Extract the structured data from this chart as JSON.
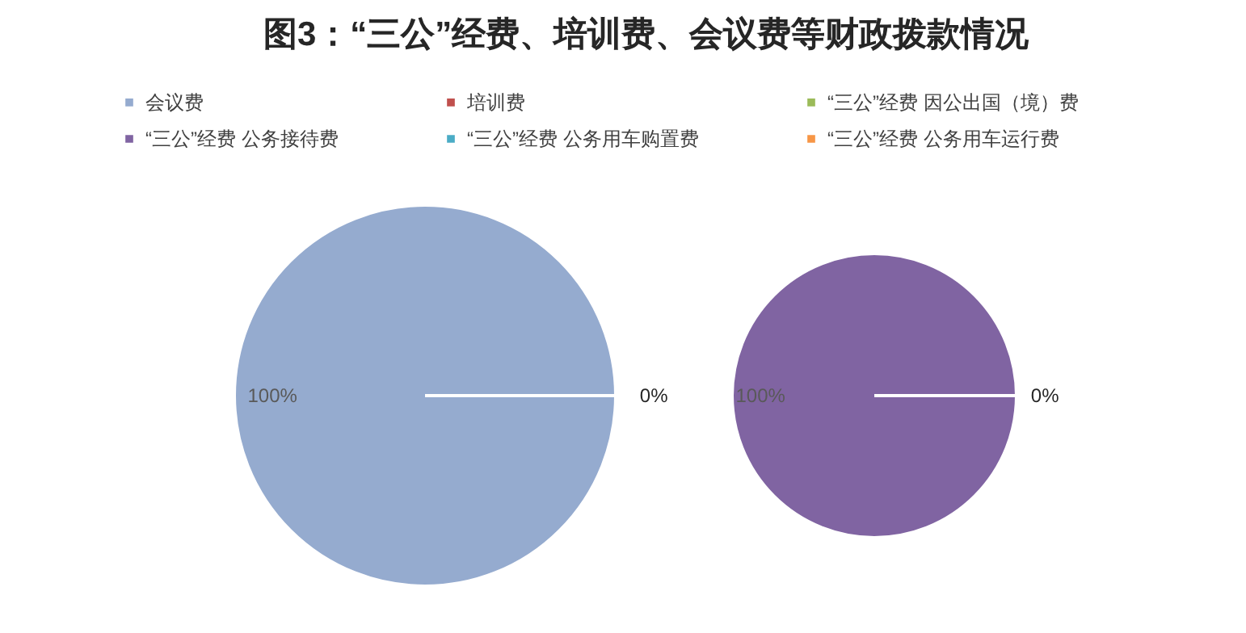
{
  "chart_data": [
    {
      "type": "pie",
      "title": "图3：“三公”经费、培训费、会议费等财政拨款情况",
      "categories": [
        "会议费",
        "培训费",
        "“三公”经费 因公出国（境）费",
        "“三公”经费 公务接待费",
        "“三公”经费 公务用车购置费",
        "“三公”经费 公务用车运行费"
      ],
      "values": [
        100,
        0,
        0,
        0,
        0,
        0
      ],
      "colors": [
        "#95abcf",
        "#c0504d",
        "#9bbb59",
        "#8064a2",
        "#4bacc6",
        "#f79646"
      ],
      "value_labels": [
        "100%",
        "0%",
        null,
        null,
        null,
        null
      ],
      "legend": "top"
    },
    {
      "type": "pie",
      "categories": [
        null,
        null
      ],
      "values": [
        100,
        0
      ],
      "colors": [
        "#8064a2",
        "#ffffff"
      ],
      "value_labels": [
        "100%",
        "0%"
      ]
    }
  ]
}
